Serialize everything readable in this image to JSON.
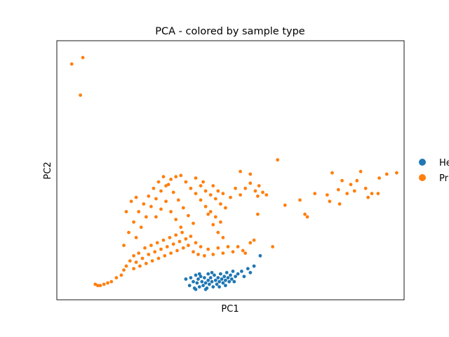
{
  "chart_data": {
    "type": "scatter",
    "title": "PCA - colored by sample type",
    "xlabel": "PC1",
    "ylabel": "PC2",
    "xlim": [
      -3,
      11
    ],
    "ylim": [
      -3,
      7
    ],
    "xticks": [],
    "yticks": [],
    "grid": false,
    "legend": {
      "placement": "right-outside",
      "entries": [
        "He",
        "Pr"
      ]
    },
    "series": [
      {
        "name": "He",
        "color": "#1f77b4",
        "points": [
          [
            2.2,
            -2.2
          ],
          [
            2.35,
            -2.45
          ],
          [
            2.4,
            -2.15
          ],
          [
            2.5,
            -2.3
          ],
          [
            2.55,
            -2.55
          ],
          [
            2.6,
            -2.05
          ],
          [
            2.65,
            -2.35
          ],
          [
            2.7,
            -2.2
          ],
          [
            2.75,
            -2.5
          ],
          [
            2.8,
            -2.1
          ],
          [
            2.85,
            -2.3
          ],
          [
            2.9,
            -2.45
          ],
          [
            2.95,
            -2.15
          ],
          [
            3.0,
            -2.35
          ],
          [
            3.05,
            -2.55
          ],
          [
            3.1,
            -2.0
          ],
          [
            3.1,
            -2.25
          ],
          [
            3.15,
            -2.4
          ],
          [
            3.2,
            -2.15
          ],
          [
            3.25,
            -2.3
          ],
          [
            3.3,
            -2.5
          ],
          [
            3.35,
            -2.05
          ],
          [
            3.4,
            -2.25
          ],
          [
            3.45,
            -2.4
          ],
          [
            3.5,
            -2.15
          ],
          [
            3.55,
            -2.3
          ],
          [
            3.6,
            -2.0
          ],
          [
            3.65,
            -2.2
          ],
          [
            3.7,
            -2.35
          ],
          [
            3.75,
            -2.1
          ],
          [
            3.8,
            -2.25
          ],
          [
            3.85,
            -1.95
          ],
          [
            3.9,
            -2.15
          ],
          [
            3.95,
            -2.3
          ],
          [
            4.0,
            -2.05
          ],
          [
            4.05,
            -2.2
          ],
          [
            4.1,
            -1.9
          ],
          [
            4.2,
            -2.1
          ],
          [
            4.3,
            -2.0
          ],
          [
            4.45,
            -1.9
          ],
          [
            4.55,
            -2.1
          ],
          [
            4.7,
            -1.8
          ],
          [
            4.8,
            -1.95
          ],
          [
            4.95,
            -1.7
          ],
          [
            5.2,
            -1.3
          ],
          [
            2.6,
            -2.6
          ],
          [
            2.75,
            -2.0
          ],
          [
            3.0,
            -2.6
          ],
          [
            3.25,
            -1.95
          ],
          [
            3.55,
            -2.5
          ],
          [
            3.8,
            -2.45
          ],
          [
            4.15,
            -2.3
          ]
        ]
      },
      {
        "name": "Pr",
        "color": "#ff7f0e",
        "points": [
          [
            -2.4,
            6.1
          ],
          [
            -1.95,
            6.35
          ],
          [
            -2.05,
            4.9
          ],
          [
            -1.45,
            -2.4
          ],
          [
            -1.35,
            -2.45
          ],
          [
            -1.25,
            -2.45
          ],
          [
            -1.1,
            -2.4
          ],
          [
            -0.95,
            -2.35
          ],
          [
            -0.8,
            -2.3
          ],
          [
            -0.6,
            -2.15
          ],
          [
            -0.4,
            -2.05
          ],
          [
            -0.3,
            -1.85
          ],
          [
            -0.2,
            -1.7
          ],
          [
            -0.05,
            -1.5
          ],
          [
            0.1,
            -1.3
          ],
          [
            0.1,
            -1.8
          ],
          [
            0.2,
            -1.55
          ],
          [
            0.3,
            -1.2
          ],
          [
            0.35,
            -1.7
          ],
          [
            0.45,
            -1.4
          ],
          [
            0.55,
            -1.0
          ],
          [
            0.6,
            -1.6
          ],
          [
            0.7,
            -1.25
          ],
          [
            0.8,
            -0.9
          ],
          [
            0.85,
            -1.5
          ],
          [
            0.95,
            -1.15
          ],
          [
            1.05,
            -0.8
          ],
          [
            1.1,
            -1.4
          ],
          [
            1.2,
            -1.05
          ],
          [
            1.3,
            -0.7
          ],
          [
            1.35,
            -1.3
          ],
          [
            1.45,
            -0.95
          ],
          [
            1.55,
            -0.6
          ],
          [
            1.6,
            -1.2
          ],
          [
            1.7,
            -0.85
          ],
          [
            1.8,
            -0.5
          ],
          [
            1.85,
            -1.1
          ],
          [
            1.95,
            -0.75
          ],
          [
            2.05,
            -0.4
          ],
          [
            2.1,
            -1.0
          ],
          [
            2.2,
            -0.65
          ],
          [
            2.3,
            -0.9
          ],
          [
            2.4,
            -0.55
          ],
          [
            2.5,
            -1.15
          ],
          [
            2.6,
            -0.8
          ],
          [
            2.7,
            -1.25
          ],
          [
            2.8,
            -0.95
          ],
          [
            2.95,
            -1.3
          ],
          [
            3.1,
            -1.05
          ],
          [
            3.3,
            -1.25
          ],
          [
            3.5,
            -1.0
          ],
          [
            3.7,
            -1.2
          ],
          [
            3.9,
            -0.95
          ],
          [
            4.1,
            -1.15
          ],
          [
            4.3,
            -0.95
          ],
          [
            4.5,
            -1.1
          ],
          [
            0.2,
            -0.6
          ],
          [
            0.4,
            -0.2
          ],
          [
            0.6,
            0.2
          ],
          [
            0.8,
            0.6
          ],
          [
            1.0,
            0.9
          ],
          [
            1.2,
            1.2
          ],
          [
            1.4,
            1.4
          ],
          [
            1.6,
            1.65
          ],
          [
            1.8,
            1.75
          ],
          [
            2.0,
            1.8
          ],
          [
            2.2,
            1.55
          ],
          [
            2.4,
            1.3
          ],
          [
            2.6,
            1.1
          ],
          [
            2.8,
            0.85
          ],
          [
            3.0,
            0.6
          ],
          [
            3.2,
            0.4
          ],
          [
            3.4,
            0.2
          ],
          [
            3.6,
            0.0
          ],
          [
            0.3,
            0.4
          ],
          [
            0.5,
            0.7
          ],
          [
            0.7,
            1.0
          ],
          [
            0.9,
            1.3
          ],
          [
            1.1,
            1.55
          ],
          [
            1.3,
            1.75
          ],
          [
            1.5,
            1.45
          ],
          [
            1.7,
            1.15
          ],
          [
            1.9,
            0.85
          ],
          [
            2.1,
            0.55
          ],
          [
            2.3,
            0.25
          ],
          [
            2.5,
            -0.05
          ],
          [
            -0.3,
            -0.9
          ],
          [
            -0.1,
            -0.4
          ],
          [
            0.1,
            0.0
          ],
          [
            -0.2,
            0.4
          ],
          [
            0.0,
            0.8
          ],
          [
            0.2,
            0.95
          ],
          [
            1.0,
            0.2
          ],
          [
            1.2,
            0.5
          ],
          [
            1.4,
            0.8
          ],
          [
            1.6,
            0.4
          ],
          [
            1.8,
            0.1
          ],
          [
            2.0,
            -0.2
          ],
          [
            2.8,
            1.4
          ],
          [
            3.0,
            1.2
          ],
          [
            3.2,
            1.05
          ],
          [
            3.4,
            0.9
          ],
          [
            3.6,
            0.7
          ],
          [
            3.8,
            0.55
          ],
          [
            3.3,
            1.4
          ],
          [
            3.5,
            1.2
          ],
          [
            3.7,
            1.1
          ],
          [
            4.0,
            0.95
          ],
          [
            4.2,
            1.3
          ],
          [
            4.4,
            1.05
          ],
          [
            2.6,
            1.7
          ],
          [
            2.9,
            1.55
          ],
          [
            3.1,
            0.3
          ],
          [
            3.3,
            -0.1
          ],
          [
            3.5,
            -0.4
          ],
          [
            3.7,
            -0.6
          ],
          [
            4.6,
            1.3
          ],
          [
            4.8,
            1.5
          ],
          [
            5.0,
            1.2
          ],
          [
            5.15,
            1.4
          ],
          [
            5.3,
            1.15
          ],
          [
            5.1,
            1.0
          ],
          [
            4.4,
            1.95
          ],
          [
            4.8,
            1.85
          ],
          [
            5.45,
            1.05
          ],
          [
            5.7,
            -0.95
          ],
          [
            6.2,
            0.65
          ],
          [
            5.9,
            2.4
          ],
          [
            5.1,
            0.3
          ],
          [
            4.8,
            -0.8
          ],
          [
            4.6,
            -1.2
          ],
          [
            4.95,
            -0.7
          ],
          [
            8.35,
            1.25
          ],
          [
            8.5,
            1.6
          ],
          [
            8.7,
            1.1
          ],
          [
            8.85,
            1.45
          ],
          [
            9.0,
            1.2
          ],
          [
            9.1,
            1.6
          ],
          [
            9.25,
            1.95
          ],
          [
            9.45,
            1.3
          ],
          [
            9.7,
            1.1
          ],
          [
            9.95,
            1.1
          ],
          [
            10.3,
            1.85
          ],
          [
            10.7,
            1.9
          ],
          [
            10.0,
            1.7
          ],
          [
            7.0,
            0.3
          ],
          [
            7.4,
            1.1
          ],
          [
            7.9,
            1.05
          ],
          [
            8.0,
            0.8
          ],
          [
            8.4,
            0.7
          ],
          [
            6.8,
            0.85
          ],
          [
            7.1,
            0.2
          ],
          [
            8.1,
            1.9
          ],
          [
            9.55,
            0.95
          ]
        ]
      }
    ]
  }
}
